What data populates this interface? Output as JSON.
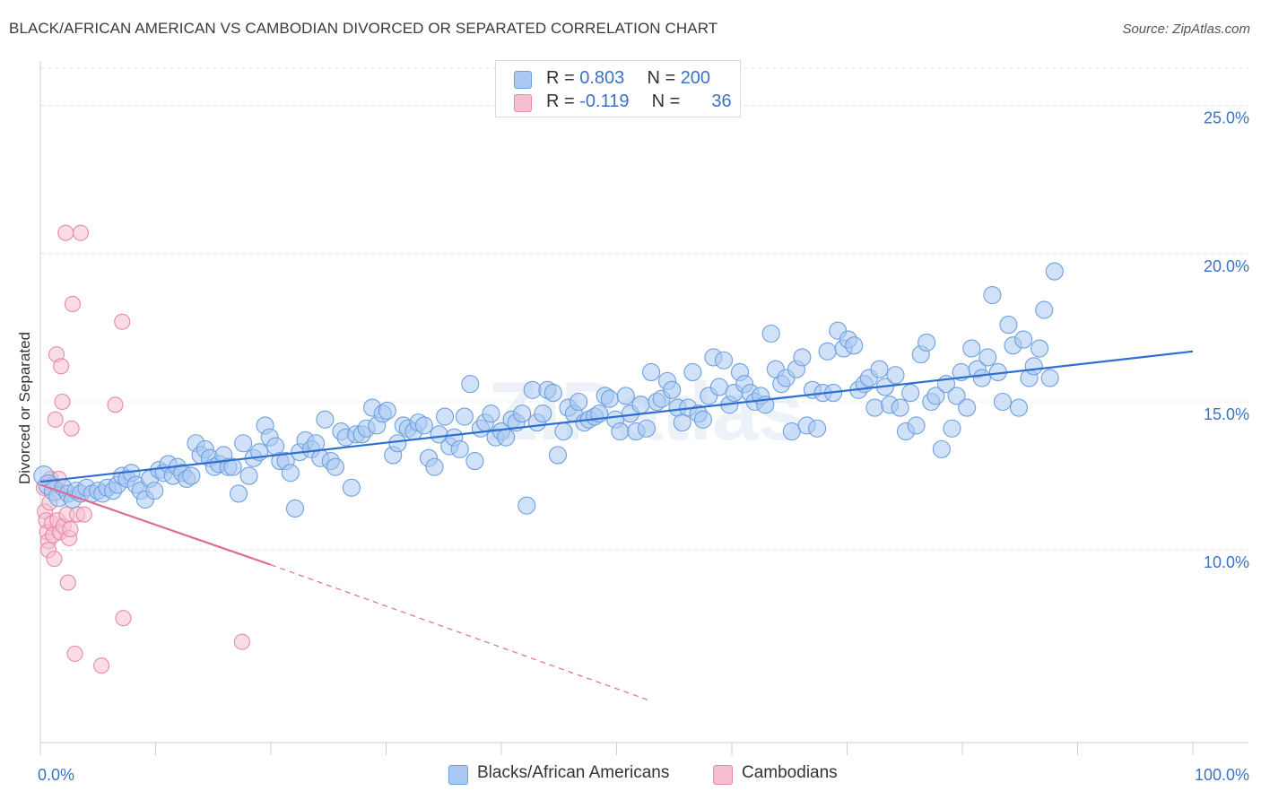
{
  "title": "BLACK/AFRICAN AMERICAN VS CAMBODIAN DIVORCED OR SEPARATED CORRELATION CHART",
  "source": "Source: ZipAtlas.com",
  "watermark": "ZIPatlas",
  "legend": {
    "rows": [
      {
        "r_label": "R =",
        "r_value": "0.803",
        "n_label": "N =",
        "n_value": "200"
      },
      {
        "r_label": "R =",
        "r_value": "-0.119",
        "n_label": "N =",
        "n_value": "36"
      }
    ]
  },
  "colors": {
    "blue_fill": "#a9c9f2",
    "blue_stroke": "#6ea0e0",
    "blue_line": "#2f6fd0",
    "pink_fill": "#f6bfd0",
    "pink_stroke": "#e989a8",
    "pink_line": "#e06a97",
    "axis_label": "#3a72c6",
    "grid": "#e4e4e4"
  },
  "chart_data": {
    "type": "scatter",
    "title": "BLACK/AFRICAN AMERICAN VS CAMBODIAN DIVORCED OR SEPARATED CORRELATION CHART",
    "xlabel": "",
    "ylabel": "Divorced or Separated",
    "xlim": [
      0,
      100
    ],
    "ylim": [
      3.5,
      26.5
    ],
    "x_tick_labels": [
      "0.0%",
      "100.0%"
    ],
    "y_ticks": [
      10,
      15,
      20,
      25
    ],
    "y_tick_labels": [
      "10.0%",
      "15.0%",
      "20.0%",
      "25.0%"
    ],
    "grid": true,
    "legend_position": "top-center",
    "series": [
      {
        "name": "Blacks/African Americans",
        "color": "#a9c9f2",
        "trend": {
          "x": [
            0,
            100
          ],
          "y": [
            12.3,
            16.7
          ]
        },
        "points": [
          [
            0.3,
            12.5
          ],
          [
            0.7,
            12.2
          ],
          [
            1.2,
            12.0
          ],
          [
            1.6,
            11.8
          ],
          [
            2.0,
            12.1
          ],
          [
            2.4,
            11.9
          ],
          [
            2.8,
            11.7
          ],
          [
            3.1,
            12.0
          ],
          [
            3.5,
            11.9
          ],
          [
            4.0,
            12.1
          ],
          [
            4.5,
            11.9
          ],
          [
            5.0,
            12.0
          ],
          [
            5.4,
            11.9
          ],
          [
            5.8,
            12.1
          ],
          [
            6.3,
            12.0
          ],
          [
            6.7,
            12.2
          ],
          [
            7.1,
            12.5
          ],
          [
            7.5,
            12.4
          ],
          [
            7.9,
            12.6
          ],
          [
            8.3,
            12.2
          ],
          [
            8.7,
            12.0
          ],
          [
            9.1,
            11.7
          ],
          [
            9.5,
            12.4
          ],
          [
            9.9,
            12.0
          ],
          [
            10.3,
            12.7
          ],
          [
            10.7,
            12.6
          ],
          [
            11.1,
            12.9
          ],
          [
            11.5,
            12.5
          ],
          [
            11.9,
            12.8
          ],
          [
            12.3,
            12.6
          ],
          [
            12.7,
            12.4
          ],
          [
            13.1,
            12.5
          ],
          [
            13.5,
            13.6
          ],
          [
            13.9,
            13.2
          ],
          [
            14.3,
            13.4
          ],
          [
            14.7,
            13.1
          ],
          [
            15.1,
            12.8
          ],
          [
            15.5,
            12.9
          ],
          [
            15.9,
            13.2
          ],
          [
            16.3,
            12.8
          ],
          [
            16.7,
            12.8
          ],
          [
            17.2,
            11.9
          ],
          [
            17.6,
            13.6
          ],
          [
            18.1,
            12.5
          ],
          [
            18.5,
            13.1
          ],
          [
            19.0,
            13.3
          ],
          [
            19.5,
            14.2
          ],
          [
            19.9,
            13.8
          ],
          [
            20.4,
            13.5
          ],
          [
            20.8,
            13.0
          ],
          [
            21.3,
            13.0
          ],
          [
            21.7,
            12.6
          ],
          [
            22.1,
            11.4
          ],
          [
            22.5,
            13.3
          ],
          [
            23.0,
            13.7
          ],
          [
            23.5,
            13.4
          ],
          [
            23.9,
            13.6
          ],
          [
            24.3,
            13.1
          ],
          [
            24.7,
            14.4
          ],
          [
            25.2,
            13.0
          ],
          [
            25.6,
            12.8
          ],
          [
            26.1,
            14.0
          ],
          [
            26.5,
            13.8
          ],
          [
            27.0,
            12.1
          ],
          [
            27.4,
            13.9
          ],
          [
            27.9,
            13.9
          ],
          [
            28.3,
            14.1
          ],
          [
            28.8,
            14.8
          ],
          [
            29.2,
            14.2
          ],
          [
            29.7,
            14.6
          ],
          [
            30.1,
            14.7
          ],
          [
            30.6,
            13.2
          ],
          [
            31.0,
            13.6
          ],
          [
            31.5,
            14.2
          ],
          [
            31.9,
            14.1
          ],
          [
            32.4,
            14.0
          ],
          [
            32.8,
            14.3
          ],
          [
            33.3,
            14.2
          ],
          [
            33.7,
            13.1
          ],
          [
            34.2,
            12.8
          ],
          [
            34.6,
            13.9
          ],
          [
            35.1,
            14.5
          ],
          [
            35.5,
            13.5
          ],
          [
            35.9,
            13.8
          ],
          [
            36.4,
            13.4
          ],
          [
            36.8,
            14.5
          ],
          [
            37.3,
            15.6
          ],
          [
            37.7,
            13.0
          ],
          [
            38.2,
            14.1
          ],
          [
            38.6,
            14.3
          ],
          [
            39.1,
            14.6
          ],
          [
            39.5,
            13.8
          ],
          [
            40.0,
            14.0
          ],
          [
            40.4,
            13.8
          ],
          [
            40.9,
            14.4
          ],
          [
            41.3,
            14.3
          ],
          [
            41.8,
            14.6
          ],
          [
            42.2,
            11.5
          ],
          [
            42.7,
            15.4
          ],
          [
            43.1,
            14.3
          ],
          [
            43.6,
            14.6
          ],
          [
            44.0,
            15.4
          ],
          [
            44.5,
            15.3
          ],
          [
            44.9,
            13.2
          ],
          [
            45.4,
            14.0
          ],
          [
            45.8,
            14.8
          ],
          [
            46.3,
            14.6
          ],
          [
            46.7,
            15.0
          ],
          [
            47.2,
            14.3
          ],
          [
            47.6,
            14.4
          ],
          [
            48.1,
            14.5
          ],
          [
            48.5,
            14.6
          ],
          [
            49.0,
            15.2
          ],
          [
            49.4,
            15.1
          ],
          [
            49.9,
            14.4
          ],
          [
            50.3,
            14.0
          ],
          [
            50.8,
            15.2
          ],
          [
            51.2,
            14.6
          ],
          [
            51.7,
            14.0
          ],
          [
            52.1,
            14.9
          ],
          [
            52.6,
            14.1
          ],
          [
            53.0,
            16.0
          ],
          [
            53.5,
            15.0
          ],
          [
            53.9,
            15.1
          ],
          [
            54.4,
            15.7
          ],
          [
            54.8,
            15.4
          ],
          [
            55.3,
            14.8
          ],
          [
            55.7,
            14.3
          ],
          [
            56.2,
            14.8
          ],
          [
            56.6,
            16.0
          ],
          [
            57.1,
            14.6
          ],
          [
            57.5,
            14.4
          ],
          [
            58.0,
            15.2
          ],
          [
            58.4,
            16.5
          ],
          [
            58.9,
            15.5
          ],
          [
            59.3,
            16.4
          ],
          [
            59.8,
            14.9
          ],
          [
            60.2,
            15.3
          ],
          [
            60.7,
            16.0
          ],
          [
            61.1,
            15.6
          ],
          [
            61.6,
            15.3
          ],
          [
            62.0,
            15.0
          ],
          [
            62.5,
            15.2
          ],
          [
            62.9,
            14.9
          ],
          [
            63.4,
            17.3
          ],
          [
            63.8,
            16.1
          ],
          [
            64.3,
            15.6
          ],
          [
            64.7,
            15.8
          ],
          [
            65.2,
            14.0
          ],
          [
            65.6,
            16.1
          ],
          [
            66.1,
            16.5
          ],
          [
            66.5,
            14.2
          ],
          [
            67.0,
            15.4
          ],
          [
            67.4,
            14.1
          ],
          [
            67.9,
            15.3
          ],
          [
            68.3,
            16.7
          ],
          [
            68.8,
            15.3
          ],
          [
            69.2,
            17.4
          ],
          [
            69.7,
            16.8
          ],
          [
            70.1,
            17.1
          ],
          [
            70.6,
            16.9
          ],
          [
            71.0,
            15.4
          ],
          [
            71.5,
            15.6
          ],
          [
            71.9,
            15.8
          ],
          [
            72.4,
            14.8
          ],
          [
            72.8,
            16.1
          ],
          [
            73.3,
            15.5
          ],
          [
            73.7,
            14.9
          ],
          [
            74.2,
            15.9
          ],
          [
            74.6,
            14.8
          ],
          [
            75.1,
            14.0
          ],
          [
            75.5,
            15.3
          ],
          [
            76.0,
            14.2
          ],
          [
            76.4,
            16.6
          ],
          [
            76.9,
            17.0
          ],
          [
            77.3,
            15.0
          ],
          [
            77.7,
            15.2
          ],
          [
            78.2,
            13.4
          ],
          [
            78.6,
            15.6
          ],
          [
            79.1,
            14.1
          ],
          [
            79.5,
            15.2
          ],
          [
            79.9,
            16.0
          ],
          [
            80.4,
            14.8
          ],
          [
            80.8,
            16.8
          ],
          [
            81.3,
            16.1
          ],
          [
            81.7,
            15.8
          ],
          [
            82.2,
            16.5
          ],
          [
            82.6,
            18.6
          ],
          [
            83.1,
            16.0
          ],
          [
            83.5,
            15.0
          ],
          [
            84.0,
            17.6
          ],
          [
            84.4,
            16.9
          ],
          [
            84.9,
            14.8
          ],
          [
            85.3,
            17.1
          ],
          [
            85.8,
            15.8
          ],
          [
            86.2,
            16.2
          ],
          [
            86.7,
            16.8
          ],
          [
            87.1,
            18.1
          ],
          [
            87.6,
            15.8
          ],
          [
            88.0,
            19.4
          ]
        ]
      },
      {
        "name": "Cambodians",
        "color": "#f6bfd0",
        "trend": {
          "x": [
            0,
            20
          ],
          "y": [
            12.2,
            9.5
          ]
        },
        "trend_dashed": {
          "x": [
            20,
            53
          ],
          "y": [
            9.5,
            4.9
          ]
        },
        "points": [
          [
            0.3,
            12.1
          ],
          [
            0.4,
            11.3
          ],
          [
            0.5,
            11.0
          ],
          [
            0.6,
            10.6
          ],
          [
            0.7,
            10.3
          ],
          [
            0.7,
            10.0
          ],
          [
            0.8,
            11.6
          ],
          [
            0.9,
            12.4
          ],
          [
            1.0,
            10.9
          ],
          [
            1.1,
            10.5
          ],
          [
            1.1,
            12.2
          ],
          [
            1.2,
            9.7
          ],
          [
            1.3,
            14.4
          ],
          [
            1.4,
            16.6
          ],
          [
            1.5,
            11.0
          ],
          [
            1.6,
            12.4
          ],
          [
            1.7,
            10.6
          ],
          [
            1.8,
            16.2
          ],
          [
            1.9,
            15.0
          ],
          [
            2.0,
            10.8
          ],
          [
            2.2,
            20.7
          ],
          [
            2.3,
            11.2
          ],
          [
            2.4,
            8.9
          ],
          [
            2.5,
            10.4
          ],
          [
            2.6,
            10.7
          ],
          [
            2.7,
            14.1
          ],
          [
            2.8,
            18.3
          ],
          [
            3.0,
            6.5
          ],
          [
            3.2,
            11.2
          ],
          [
            3.5,
            20.7
          ],
          [
            3.8,
            11.2
          ],
          [
            5.3,
            6.1
          ],
          [
            6.5,
            14.9
          ],
          [
            7.2,
            7.7
          ],
          [
            7.1,
            17.7
          ],
          [
            17.5,
            6.9
          ]
        ]
      }
    ]
  },
  "bottom_legend": {
    "items": [
      {
        "label": "Blacks/African Americans"
      },
      {
        "label": "Cambodians"
      }
    ]
  }
}
